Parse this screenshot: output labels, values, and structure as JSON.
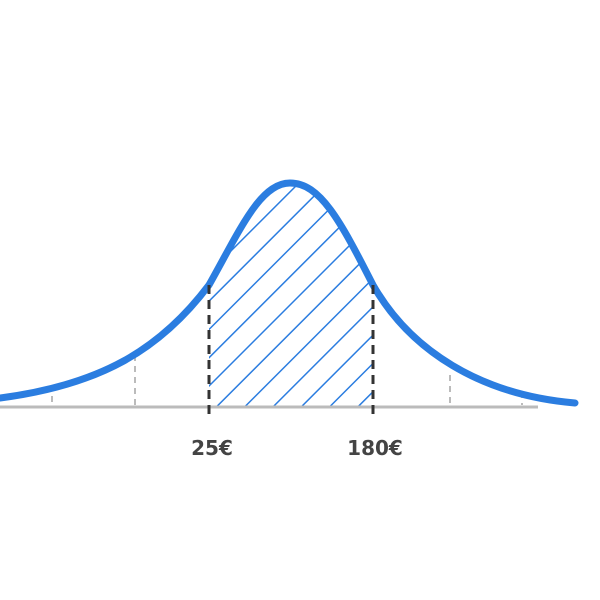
{
  "labels": {
    "lower": "25€",
    "upper": "180€"
  }
}
